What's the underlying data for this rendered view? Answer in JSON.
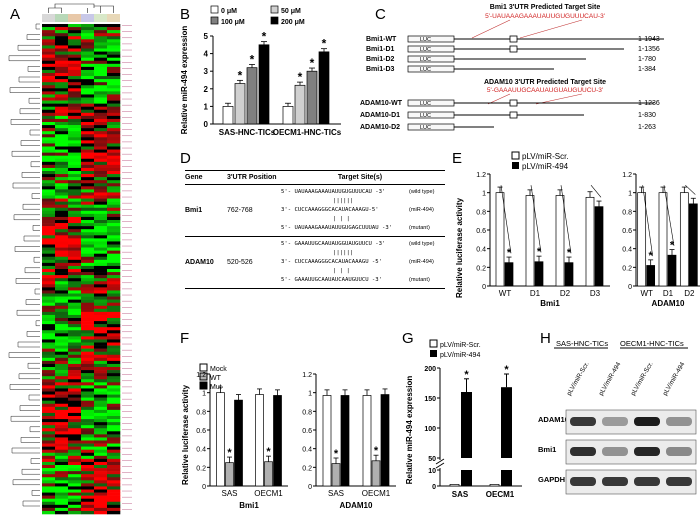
{
  "panels": {
    "A": "A",
    "B": "B",
    "C": "C",
    "D": "D",
    "E": "E",
    "F": "F",
    "G": "G",
    "H": "H"
  },
  "panel_b": {
    "chart_data": {
      "type": "bar",
      "ylabel": "Relative miR-494 expression",
      "ylim": [
        0,
        5
      ],
      "yticks": [
        0,
        1,
        2,
        3,
        4,
        5
      ],
      "categories": [
        "SAS-HNC-TICs",
        "OECM1-HNC-TICs"
      ],
      "series": [
        {
          "name": "0 μM",
          "values": [
            1.0,
            1.0
          ],
          "color": "#ffffff"
        },
        {
          "name": "50 μM",
          "values": [
            2.3,
            2.2
          ],
          "color": "#d0d0d0"
        },
        {
          "name": "100 μM",
          "values": [
            3.2,
            3.0
          ],
          "color": "#808080"
        },
        {
          "name": "200 μM",
          "values": [
            4.5,
            4.1
          ],
          "color": "#000000"
        }
      ],
      "significance": "*",
      "legend": "top"
    }
  },
  "panel_c": {
    "bmi1_title": "Bmi1 3'UTR Predicted Target Site",
    "bmi1_seq": "5'-UAUAAAGAAAUAUUGUGUUUCAU-3'",
    "bmi1_constructs": [
      {
        "name": "Bmi1-WT",
        "range": "1-1943"
      },
      {
        "name": "Bmi1-D1",
        "range": "1-1356"
      },
      {
        "name": "Bmi1-D2",
        "range": "1-780"
      },
      {
        "name": "Bmi1-D3",
        "range": "1-384"
      }
    ],
    "adam_title": "ADAM10 3'UTR Predicted Target Site",
    "adam_seq": "5'-GAAAUUGCAAUAUGUAUGUUCU-3'",
    "adam_constructs": [
      {
        "name": "ADAM10-WT",
        "range": "1-1236"
      },
      {
        "name": "ADAM10-D1",
        "range": "1-830"
      },
      {
        "name": "ADAM10-D2",
        "range": "1-263"
      }
    ],
    "luc": "LUC"
  },
  "panel_d": {
    "headers": [
      "Gene",
      "3'UTR Position",
      "Target Site(s)"
    ],
    "rows": [
      {
        "gene": "Bmi1",
        "position": "762-768",
        "lines": [
          {
            "seq": "5'- UAUAAAGAAAUAUUGUGUUUCAU -3'",
            "note": "(wild type)"
          },
          {
            "seq": "||||||",
            "note": ""
          },
          {
            "seq": "3'- CUCCAAAGGGCACAUACAAAGU-5'",
            "note": "(miR-494)"
          },
          {
            "seq": "| | |",
            "note": ""
          },
          {
            "seq": "5'- UAUAAAGAAAUAUUGUGAGCUUUAU -3'",
            "note": "(mutant)"
          }
        ]
      },
      {
        "gene": "ADAM10",
        "position": "520-526",
        "lines": [
          {
            "seq": "5'- GAAAUUGCAAUAUGGUAUGUUCU -3'",
            "note": "(wild type)"
          },
          {
            "seq": "||||||",
            "note": ""
          },
          {
            "seq": "3'- CUCCAAAGGGCACAUACAAAGU -5'",
            "note": "(miR-494)"
          },
          {
            "seq": "| | |",
            "note": ""
          },
          {
            "seq": "5'- GAAAUUGCAAUAUCAAUGUUCU -3'",
            "note": "(mutant)"
          }
        ]
      }
    ]
  },
  "panel_e": {
    "chart_data": {
      "type": "bar",
      "ylabel": "Relative luciferase activity",
      "ylim": [
        0,
        1.2
      ],
      "yticks": [
        "0",
        "0.2",
        "0.4",
        "0.6",
        "0.8",
        "1",
        "1.2"
      ],
      "legend": [
        "pLV/miR-Scr.",
        "pLV/miR-494"
      ],
      "groups": [
        {
          "name": "Bmi1",
          "categories": [
            "WT",
            "D1",
            "D2",
            "D3"
          ],
          "scr": [
            1.0,
            0.97,
            0.97,
            0.95
          ],
          "mir": [
            0.25,
            0.26,
            0.25,
            0.85
          ]
        },
        {
          "name": "ADAM10",
          "categories": [
            "WT",
            "D1",
            "D2"
          ],
          "scr": [
            1.0,
            1.0,
            1.0
          ],
          "mir": [
            0.22,
            0.33,
            0.88
          ]
        }
      ]
    }
  },
  "panel_f": {
    "chart_data": {
      "type": "bar",
      "ylabel": "Relative luciferase activity",
      "ylim": [
        0,
        1.2
      ],
      "yticks": [
        "0",
        "0.2",
        "0.4",
        "0.6",
        "0.8",
        "1",
        "1.2"
      ],
      "legend": [
        "Mock",
        "WT",
        "Mut"
      ],
      "groups": [
        {
          "name": "Bmi1",
          "categories": [
            "SAS",
            "OECM1"
          ],
          "mock": [
            1.0,
            0.98
          ],
          "wt": [
            0.25,
            0.26
          ],
          "mut": [
            0.92,
            0.97
          ]
        },
        {
          "name": "ADAM10",
          "categories": [
            "SAS",
            "OECM1"
          ],
          "mock": [
            0.97,
            0.97
          ],
          "wt": [
            0.24,
            0.27
          ],
          "mut": [
            0.97,
            0.98
          ]
        }
      ]
    }
  },
  "panel_g": {
    "chart_data": {
      "type": "bar",
      "ylabel": "Relative miR-494 expression",
      "ylim": [
        0,
        200
      ],
      "yticks": [
        "0",
        "10",
        "50",
        "100",
        "150",
        "200"
      ],
      "legend": [
        "pLV/miR-Scr.",
        "pLV/miR-494"
      ],
      "categories": [
        "SAS",
        "OECM1"
      ],
      "scr": [
        1,
        1
      ],
      "mir": [
        160,
        168
      ]
    }
  },
  "panel_h": {
    "groups": [
      "SAS-HNC-TICs",
      "OECM1-HNC-TICs"
    ],
    "lanes": [
      "pLV/miR-Scr.",
      "pLV/miR-494",
      "pLV/miR-Scr.",
      "pLV/miR-494"
    ],
    "bands": [
      "ADAM10",
      "Bmi1",
      "GAPDH"
    ]
  },
  "heatmap_colors": {
    "up": "#e01010",
    "down": "#10c010",
    "mid": "#000000"
  }
}
